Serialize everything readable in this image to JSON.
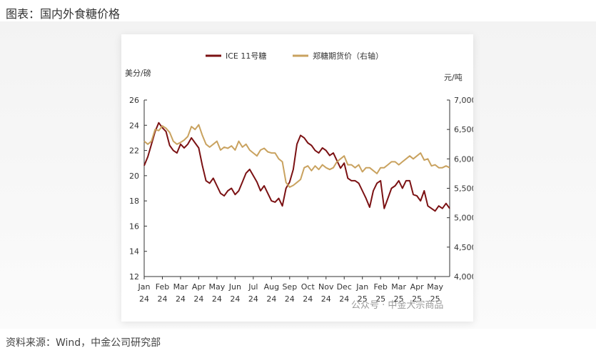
{
  "page": {
    "title": "图表：国内外食糖价格",
    "source": "资料来源：Wind，中金公司研究部",
    "watermark": "公众号 · 中金大宗商品"
  },
  "chart_data": {
    "type": "line",
    "title": "",
    "legend_position": "top",
    "left_axis": {
      "label": "美分/磅",
      "min": 12,
      "max": 26,
      "ticks": [
        "12",
        "14",
        "16",
        "18",
        "20",
        "22",
        "24",
        "26"
      ]
    },
    "right_axis": {
      "label": "元/吨",
      "min": 4000,
      "max": 7000,
      "ticks": [
        "4,000",
        "4,500",
        "5,000",
        "5,500",
        "6,000",
        "6,500",
        "7,000"
      ]
    },
    "x_ticks": [
      {
        "month": "Jan",
        "year": "24"
      },
      {
        "month": "Feb",
        "year": "24"
      },
      {
        "month": "Mar",
        "year": "24"
      },
      {
        "month": "Apr",
        "year": "24"
      },
      {
        "month": "May",
        "year": "24"
      },
      {
        "month": "Jun",
        "year": "24"
      },
      {
        "month": "Jul",
        "year": "24"
      },
      {
        "month": "Aug",
        "year": "24"
      },
      {
        "month": "Sep",
        "year": "24"
      },
      {
        "month": "Oct",
        "year": "24"
      },
      {
        "month": "Nov",
        "year": "24"
      },
      {
        "month": "Dec",
        "year": "24"
      },
      {
        "month": "Jan",
        "year": "25"
      },
      {
        "month": "Feb",
        "year": "25"
      },
      {
        "month": "Mar",
        "year": "25"
      },
      {
        "month": "Apr",
        "year": "25"
      },
      {
        "month": "May",
        "year": "25"
      }
    ],
    "series": [
      {
        "name": "ICE 11号糖",
        "axis": "left",
        "color": "#7b1113",
        "x": [
          0,
          0.2,
          0.4,
          0.6,
          0.8,
          1.0,
          1.2,
          1.4,
          1.6,
          1.8,
          2.0,
          2.2,
          2.4,
          2.6,
          2.8,
          3.0,
          3.2,
          3.4,
          3.6,
          3.8,
          4.0,
          4.2,
          4.4,
          4.6,
          4.8,
          5.0,
          5.2,
          5.4,
          5.6,
          5.8,
          6.0,
          6.2,
          6.4,
          6.6,
          6.8,
          7.0,
          7.2,
          7.4,
          7.6,
          7.8,
          8.0,
          8.2,
          8.4,
          8.6,
          8.8,
          9.0,
          9.2,
          9.4,
          9.6,
          9.8,
          10.0,
          10.2,
          10.4,
          10.6,
          10.8,
          11.0,
          11.2,
          11.4,
          11.6,
          11.8,
          12.0,
          12.2,
          12.4,
          12.6,
          12.8,
          13.0,
          13.2,
          13.4,
          13.6,
          13.8,
          14.0,
          14.2,
          14.4,
          14.6,
          14.8,
          15.0,
          15.2,
          15.4,
          15.6,
          15.8,
          16.0,
          16.2,
          16.4,
          16.6,
          16.8
        ],
        "values": [
          20.8,
          21.5,
          22.5,
          23.5,
          24.2,
          23.8,
          23.5,
          22.4,
          22.0,
          21.8,
          22.5,
          22.2,
          22.5,
          23.0,
          22.6,
          22.2,
          20.8,
          19.6,
          19.4,
          19.8,
          19.2,
          18.6,
          18.4,
          18.8,
          19.0,
          18.5,
          18.8,
          19.5,
          20.2,
          20.5,
          20.0,
          19.5,
          18.8,
          19.2,
          18.6,
          18.0,
          17.9,
          18.2,
          17.6,
          19.0,
          19.5,
          20.5,
          22.5,
          23.2,
          23.0,
          22.6,
          22.4,
          22.0,
          21.8,
          22.2,
          22.0,
          21.6,
          21.8,
          21.2,
          20.6,
          21.0,
          19.8,
          19.6,
          19.6,
          19.4,
          18.8,
          18.2,
          17.5,
          18.8,
          19.4,
          19.6,
          17.4,
          18.2,
          19.0,
          19.2,
          19.6,
          19.0,
          19.6,
          19.6,
          18.5,
          18.4,
          18.0,
          18.8,
          17.6,
          17.4,
          17.2,
          17.6,
          17.4,
          17.8,
          17.4
        ]
      },
      {
        "name": "郑糖期货价（右轴）",
        "axis": "right",
        "color": "#c9a25f",
        "x": [
          0,
          0.2,
          0.4,
          0.6,
          0.8,
          1.0,
          1.2,
          1.4,
          1.6,
          1.8,
          2.0,
          2.2,
          2.4,
          2.6,
          2.8,
          3.0,
          3.2,
          3.4,
          3.6,
          3.8,
          4.0,
          4.2,
          4.4,
          4.6,
          4.8,
          5.0,
          5.2,
          5.4,
          5.6,
          5.8,
          6.0,
          6.2,
          6.4,
          6.6,
          6.8,
          7.0,
          7.2,
          7.4,
          7.6,
          7.8,
          8.0,
          8.2,
          8.4,
          8.6,
          8.8,
          9.0,
          9.2,
          9.4,
          9.6,
          9.8,
          10.0,
          10.2,
          10.4,
          10.6,
          10.8,
          11.0,
          11.2,
          11.4,
          11.6,
          11.8,
          12.0,
          12.2,
          12.4,
          12.6,
          12.8,
          13.0,
          13.2,
          13.4,
          13.6,
          13.8,
          14.0,
          14.2,
          14.4,
          14.6,
          14.8,
          15.0,
          15.2,
          15.4,
          15.6,
          15.8,
          16.0,
          16.2,
          16.4,
          16.6,
          16.8
        ],
        "values": [
          6300,
          6250,
          6300,
          6500,
          6480,
          6560,
          6520,
          6450,
          6300,
          6250,
          6280,
          6320,
          6380,
          6550,
          6500,
          6580,
          6400,
          6250,
          6200,
          6250,
          6300,
          6150,
          6200,
          6180,
          6220,
          6150,
          6300,
          6200,
          6250,
          6150,
          6100,
          6050,
          6150,
          6180,
          6120,
          6100,
          6100,
          6000,
          5950,
          5600,
          5520,
          5550,
          5600,
          5650,
          5850,
          5880,
          5800,
          5880,
          5820,
          5900,
          5850,
          5820,
          5850,
          5950,
          6000,
          6050,
          5900,
          5900,
          5850,
          5900,
          5780,
          5850,
          5850,
          5800,
          5750,
          5850,
          5850,
          5900,
          5950,
          5950,
          5900,
          5950,
          6000,
          6050,
          6000,
          6050,
          6100,
          5980,
          6000,
          5880,
          5900,
          5850,
          5850,
          5880,
          5850
        ]
      }
    ]
  }
}
